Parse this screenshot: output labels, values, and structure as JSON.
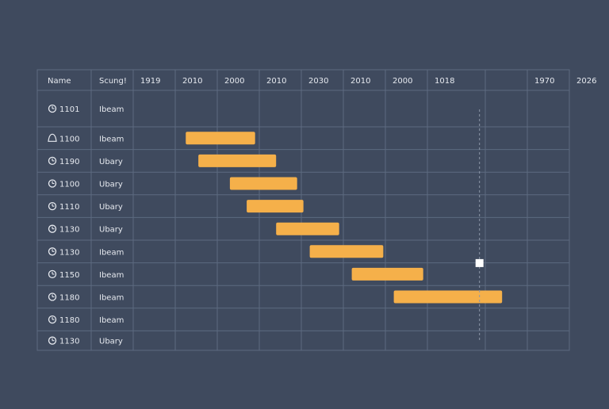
{
  "chart_data": {
    "type": "gantt",
    "title": "",
    "columns": {
      "name_header": "Name",
      "schedule_header": "Scung!"
    },
    "timeline_headers": [
      "1919",
      "2010",
      "2000",
      "2010",
      "2030",
      "2010",
      "2000",
      "1018",
      "",
      "1970",
      "2026"
    ],
    "rows": [
      {
        "icon": "clock-icon",
        "name": "1101",
        "schedule": "Ibeam"
      },
      {
        "icon": "bell-icon",
        "name": "1100",
        "schedule": "Ibeam"
      },
      {
        "icon": "clock-icon",
        "name": "1190",
        "schedule": "Ubary"
      },
      {
        "icon": "clock-icon",
        "name": "1100",
        "schedule": "Ubary"
      },
      {
        "icon": "clock-icon",
        "name": "1110",
        "schedule": "Ubary"
      },
      {
        "icon": "clock-icon",
        "name": "1130",
        "schedule": "Ubary"
      },
      {
        "icon": "clock-icon",
        "name": "1130",
        "schedule": "Ibeam"
      },
      {
        "icon": "clock-icon",
        "name": "1150",
        "schedule": "Ibeam"
      },
      {
        "icon": "clock-icon",
        "name": "1180",
        "schedule": "Ibeam"
      },
      {
        "icon": "clock-icon",
        "name": "1180",
        "schedule": "Ibeam"
      },
      {
        "icon": "clock-icon",
        "name": "1130",
        "schedule": "Ubary"
      }
    ],
    "bars": [
      {
        "row": 1,
        "start": 1.25,
        "end": 2.9
      },
      {
        "row": 2,
        "start": 1.55,
        "end": 3.4
      },
      {
        "row": 3,
        "start": 2.3,
        "end": 3.9
      },
      {
        "row": 4,
        "start": 2.7,
        "end": 4.05
      },
      {
        "row": 5,
        "start": 3.4,
        "end": 4.9
      },
      {
        "row": 6,
        "start": 4.2,
        "end": 5.95
      },
      {
        "row": 7,
        "start": 5.2,
        "end": 6.9
      },
      {
        "row": 8,
        "start": 6.2,
        "end": 8.4
      }
    ],
    "today_marker": {
      "position": 7.9,
      "marker_row": 7
    },
    "colors": {
      "background": "#3f4a5e",
      "grid": "#5d6a80",
      "text": "#e6e9ef",
      "bar": "#f5b04a",
      "marker": "#ffffff",
      "today_line": "#8e98aa"
    }
  }
}
